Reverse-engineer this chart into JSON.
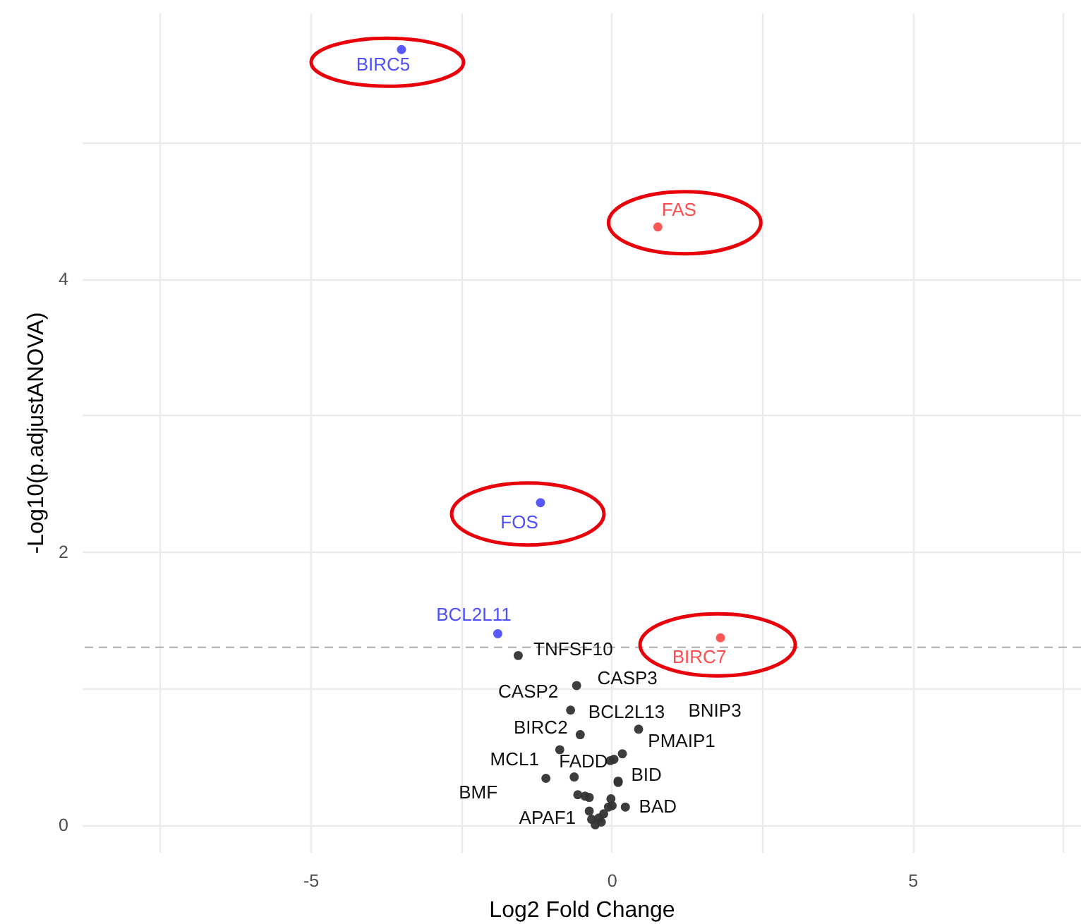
{
  "chart_data": {
    "type": "scatter",
    "xlabel": "Log2 Fold Change",
    "ylabel": "-Log10(p.adjustANOVA)",
    "xlim": [
      -8.8,
      7.8
    ],
    "ylim": [
      -0.2,
      5.95
    ],
    "xticks": [
      {
        "value": -7.5,
        "label": null
      },
      -5,
      {
        "value": -2.5,
        "label": null
      },
      0,
      {
        "value": 2.5,
        "label": null
      },
      5,
      {
        "value": 7.5,
        "label": null
      }
    ],
    "yticks": [
      0,
      {
        "value": 1,
        "label": null
      },
      2,
      {
        "value": 3,
        "label": null
      },
      4,
      {
        "value": 5,
        "label": null
      }
    ],
    "grid": true,
    "marker": "circle",
    "ref_lines": [
      {
        "axis": "y",
        "value": 1.3,
        "label": null,
        "color": "#bbbbbb",
        "line_style": "dashed"
      }
    ],
    "series": [
      {
        "color": "#4f4fff",
        "x": [
          -3.49,
          -1.18,
          -1.89
        ],
        "values": [
          5.68,
          2.36,
          1.4
        ]
      },
      {
        "color": "#ff4d4d",
        "x": [
          0.77,
          1.81
        ],
        "values": [
          4.38,
          1.37
        ]
      },
      {
        "color": "#333333",
        "x": [
          -1.55,
          -0.58,
          -0.68,
          -0.52,
          0.45,
          0.18,
          0.04,
          -0.02,
          -0.86,
          -1.09,
          -0.62,
          0.11,
          0.23,
          -0.56,
          -0.37,
          -0.44,
          -0.01,
          -0.37,
          0.11,
          0.01,
          -0.33,
          -0.27,
          -0.17,
          -0.13,
          -0.05,
          -0.21
        ],
        "values": [
          1.24,
          1.02,
          0.84,
          0.66,
          0.7,
          0.52,
          0.48,
          0.47,
          0.55,
          0.34,
          0.35,
          0.32,
          0.13,
          0.22,
          0.2,
          0.21,
          0.19,
          0.1,
          0.31,
          0.14,
          0.04,
          0.0,
          0.02,
          0.08,
          0.13,
          0.05
        ]
      }
    ],
    "annotations": [
      {
        "text": "BIRC5",
        "x": -3.49,
        "y": 5.68
      },
      {
        "text": "FAS",
        "x": 0.77,
        "y": 4.38
      },
      {
        "text": "FOS",
        "x": -1.18,
        "y": 2.36
      },
      {
        "text": "BCL2L11",
        "x": -1.89,
        "y": 1.4
      },
      {
        "text": "TNFSF10",
        "x": -1.55,
        "y": 1.24
      },
      {
        "text": "BIRC7",
        "x": 1.81,
        "y": 1.37
      },
      {
        "text": "CASP3",
        "x": -0.58,
        "y": 1.02
      },
      {
        "text": "CASP2",
        "x": -0.68,
        "y": 0.84
      },
      {
        "text": "BCL2L13",
        "x": 0.04,
        "y": 0.48
      },
      {
        "text": "BNIP3",
        "x": 0.45,
        "y": 0.7
      },
      {
        "text": "BIRC2",
        "x": -0.52,
        "y": 0.66
      },
      {
        "text": "PMAIP1",
        "x": 0.18,
        "y": 0.52
      },
      {
        "text": "FADD",
        "x": -0.02,
        "y": 0.47
      },
      {
        "text": "MCL1",
        "x": -0.86,
        "y": 0.55
      },
      {
        "text": "BID",
        "x": 0.11,
        "y": 0.32
      },
      {
        "text": "BMF",
        "x": -1.09,
        "y": 0.34
      },
      {
        "text": "APAF1",
        "x": -0.62,
        "y": 0.35
      },
      {
        "text": "BAD",
        "x": 0.23,
        "y": 0.13
      }
    ]
  }
}
